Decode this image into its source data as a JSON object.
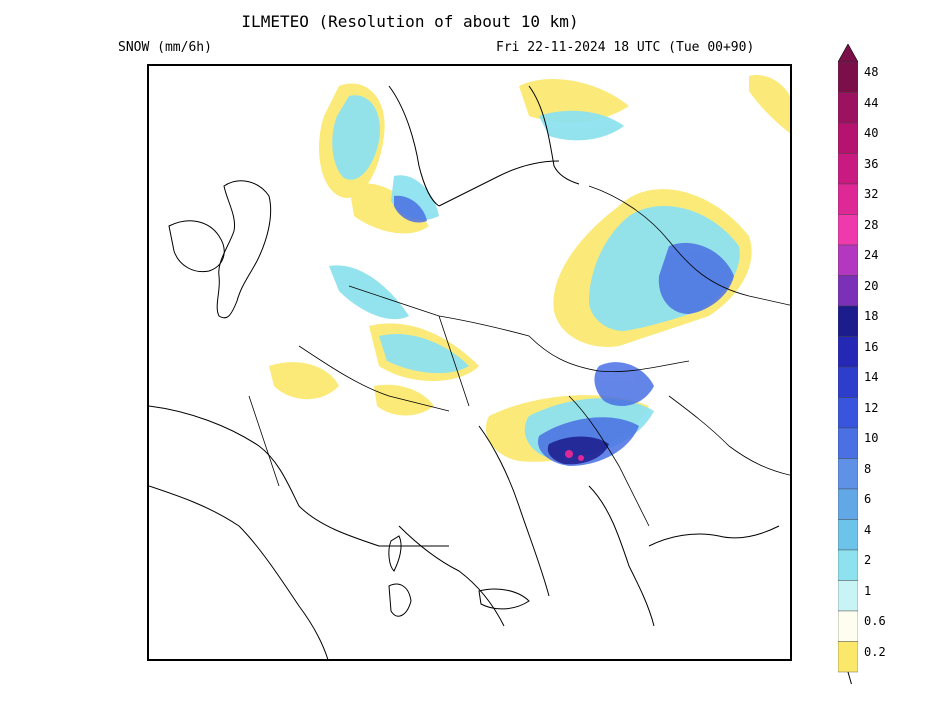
{
  "header": {
    "title": "ILMETEO (Resolution of about 10 km)",
    "field": "SNOW (mm/6h)",
    "valid_time": "Fri 22-11-2024 18 UTC (Tue 00+90)"
  },
  "legend": {
    "levels": [
      {
        "label": "48",
        "color": "#7a0f4a"
      },
      {
        "label": "44",
        "color": "#9c1261"
      },
      {
        "label": "40",
        "color": "#b5136f"
      },
      {
        "label": "36",
        "color": "#c81a80"
      },
      {
        "label": "32",
        "color": "#de2896"
      },
      {
        "label": "28",
        "color": "#ee3aac"
      },
      {
        "label": "24",
        "color": "#b437c0"
      },
      {
        "label": "20",
        "color": "#7a31b8"
      },
      {
        "label": "18",
        "color": "#1c1c8c"
      },
      {
        "label": "16",
        "color": "#2428b5"
      },
      {
        "label": "14",
        "color": "#2d3dcc"
      },
      {
        "label": "12",
        "color": "#3a55dd"
      },
      {
        "label": "10",
        "color": "#4a70e4"
      },
      {
        "label": "8",
        "color": "#5f92e6"
      },
      {
        "label": "6",
        "color": "#62a8e6"
      },
      {
        "label": "4",
        "color": "#6cc4ea"
      },
      {
        "label": "2",
        "color": "#8ee2ef"
      },
      {
        "label": "1",
        "color": "#c9f4f6"
      },
      {
        "label": "0.6",
        "color": "#fdfdf0"
      },
      {
        "label": "0.2",
        "color": "#fbe86a"
      }
    ]
  }
}
